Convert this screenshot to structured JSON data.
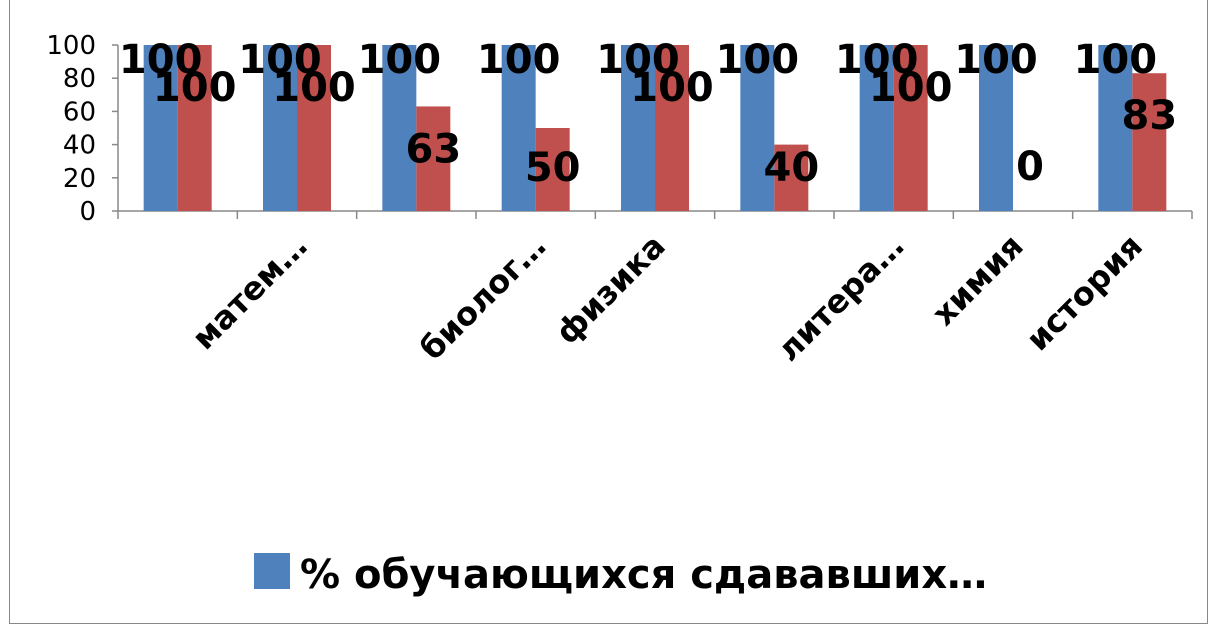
{
  "chart_data": {
    "type": "bar",
    "categories": [
      "",
      "матем…",
      "",
      "биолог…",
      "физика",
      "",
      "литера…",
      "химия",
      "история"
    ],
    "series": [
      {
        "name": "% обучающихся сдававших…",
        "color": "#4F81BD",
        "values": [
          100,
          100,
          100,
          100,
          100,
          100,
          100,
          100,
          100
        ]
      },
      {
        "name": "",
        "color": "#C0504D",
        "values": [
          100,
          100,
          63,
          50,
          100,
          40,
          100,
          0,
          83
        ]
      }
    ],
    "ylim": [
      0,
      100
    ],
    "yticks": [
      0,
      20,
      40,
      60,
      80,
      100
    ],
    "legend_position": "bottom",
    "grid": false,
    "xlabel": "",
    "ylabel": "",
    "title": ""
  }
}
